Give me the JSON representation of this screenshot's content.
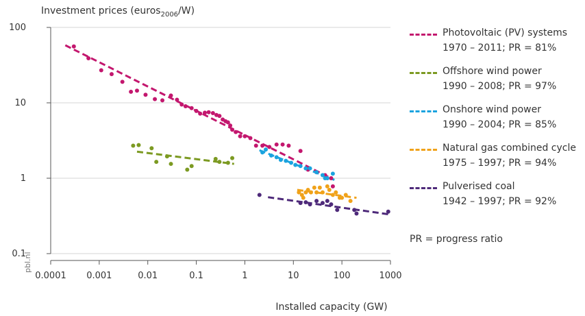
{
  "chart_data": {
    "type": "scatter",
    "ylabel_main": "Investment prices (euros",
    "ylabel_sub": "2006",
    "ylabel_end": "/W)",
    "xlabel": "Installed capacity (GW)",
    "x_scale": "log",
    "y_scale": "log",
    "xlim": [
      0.0001,
      1000
    ],
    "ylim": [
      0.1,
      100
    ],
    "x_ticks": [
      "0.0001",
      "0.001",
      "0.01",
      "0.1",
      "1",
      "10",
      "100",
      "1000"
    ],
    "y_ticks": [
      "0.1",
      "1",
      "10",
      "100"
    ],
    "grid": "horizontal",
    "legend_position": "right",
    "credit": "pbl.nl",
    "note": "PR = progress ratio",
    "series": [
      {
        "name": "Photovoltaic (PV) systems",
        "period": "1970 – 2011; PR = 81%",
        "color": "#c3176e",
        "trend": [
          [
            0.0002,
            58
          ],
          [
            60,
            1.0
          ]
        ],
        "points": [
          [
            0.0003,
            56
          ],
          [
            0.0006,
            39
          ],
          [
            0.0011,
            27
          ],
          [
            0.0018,
            24
          ],
          [
            0.003,
            19
          ],
          [
            0.0045,
            14
          ],
          [
            0.006,
            14.5
          ],
          [
            0.009,
            12.8
          ],
          [
            0.014,
            11.2
          ],
          [
            0.02,
            10.8
          ],
          [
            0.03,
            12.5
          ],
          [
            0.04,
            11
          ],
          [
            0.05,
            9.5
          ],
          [
            0.06,
            9
          ],
          [
            0.08,
            8.5
          ],
          [
            0.1,
            7.8
          ],
          [
            0.12,
            7.2
          ],
          [
            0.15,
            7.4
          ],
          [
            0.18,
            7.5
          ],
          [
            0.22,
            7.3
          ],
          [
            0.26,
            6.9
          ],
          [
            0.3,
            6.7
          ],
          [
            0.35,
            6.0
          ],
          [
            0.4,
            5.7
          ],
          [
            0.45,
            5.5
          ],
          [
            0.5,
            5.0
          ],
          [
            0.55,
            4.4
          ],
          [
            0.65,
            4.1
          ],
          [
            0.8,
            3.6
          ],
          [
            1.0,
            3.6
          ],
          [
            1.3,
            3.4
          ],
          [
            1.7,
            2.7
          ],
          [
            2.3,
            2.7
          ],
          [
            3.2,
            2.6
          ],
          [
            4.5,
            2.8
          ],
          [
            6,
            2.8
          ],
          [
            8,
            2.7
          ],
          [
            14,
            2.3
          ],
          [
            20,
            1.3
          ],
          [
            30,
            1.2
          ],
          [
            45,
            1.1
          ],
          [
            60,
            1.0
          ],
          [
            65,
            0.78
          ]
        ]
      },
      {
        "name": "Offshore wind power",
        "period": "1990 – 2008; PR = 97%",
        "color": "#7c9a22",
        "trend": [
          [
            0.006,
            2.25
          ],
          [
            0.6,
            1.55
          ]
        ],
        "points": [
          [
            0.005,
            2.7
          ],
          [
            0.0065,
            2.75
          ],
          [
            0.012,
            2.5
          ],
          [
            0.015,
            1.65
          ],
          [
            0.025,
            1.95
          ],
          [
            0.03,
            1.55
          ],
          [
            0.065,
            1.3
          ],
          [
            0.08,
            1.45
          ],
          [
            0.25,
            1.8
          ],
          [
            0.3,
            1.65
          ],
          [
            0.45,
            1.6
          ],
          [
            0.55,
            1.85
          ]
        ]
      },
      {
        "name": "Onshore wind power",
        "period": "1990 – 2004; PR = 85%",
        "color": "#1aa3df",
        "trend": [
          [
            2,
            2.35
          ],
          [
            70,
            0.95
          ]
        ],
        "points": [
          [
            2.3,
            2.2
          ],
          [
            2.7,
            2.4
          ],
          [
            3.5,
            2.0
          ],
          [
            4.5,
            1.9
          ],
          [
            5.5,
            1.75
          ],
          [
            7,
            1.7
          ],
          [
            9,
            1.6
          ],
          [
            11,
            1.5
          ],
          [
            14,
            1.45
          ],
          [
            18,
            1.35
          ],
          [
            22,
            1.35
          ],
          [
            30,
            1.2
          ],
          [
            40,
            1.1
          ],
          [
            50,
            1.0
          ],
          [
            45,
            1.0
          ],
          [
            65,
            1.15
          ]
        ]
      },
      {
        "name": "Natural gas combined cycle",
        "period": "1975 – 1997; PR = 94%",
        "color": "#f0a21a",
        "trend": [
          [
            12,
            0.7
          ],
          [
            200,
            0.55
          ]
        ],
        "points": [
          [
            13,
            0.65
          ],
          [
            15,
            0.6
          ],
          [
            16,
            0.55
          ],
          [
            18,
            0.65
          ],
          [
            20,
            0.7
          ],
          [
            23,
            0.65
          ],
          [
            27,
            0.75
          ],
          [
            30,
            0.65
          ],
          [
            35,
            0.75
          ],
          [
            40,
            0.65
          ],
          [
            50,
            0.78
          ],
          [
            55,
            0.7
          ],
          [
            65,
            0.6
          ],
          [
            75,
            0.65
          ],
          [
            90,
            0.55
          ],
          [
            100,
            0.55
          ],
          [
            120,
            0.6
          ],
          [
            150,
            0.5
          ]
        ]
      },
      {
        "name": "Pulverised coal",
        "period": "1942 – 1997; PR = 92%",
        "color": "#4e2a7a",
        "trend": [
          [
            3,
            0.56
          ],
          [
            1000,
            0.33
          ]
        ],
        "points": [
          [
            2,
            0.6
          ],
          [
            14,
            0.47
          ],
          [
            18,
            0.48
          ],
          [
            22,
            0.45
          ],
          [
            30,
            0.5
          ],
          [
            40,
            0.47
          ],
          [
            50,
            0.5
          ],
          [
            60,
            0.45
          ],
          [
            80,
            0.38
          ],
          [
            180,
            0.38
          ],
          [
            200,
            0.34
          ],
          [
            900,
            0.36
          ]
        ]
      }
    ]
  }
}
